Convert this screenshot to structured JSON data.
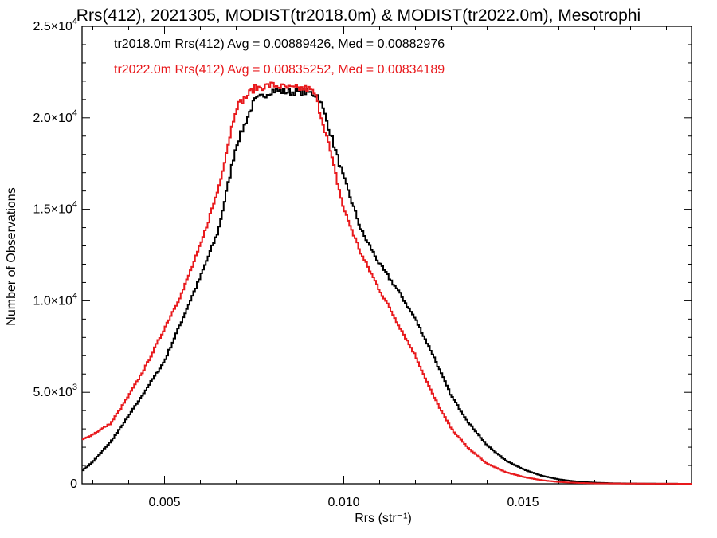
{
  "chart_data": {
    "type": "line",
    "style": "histogram-step",
    "title": "Rrs(412), 2021305, MODIST(tr2018.0m) & MODIST(tr2022.0m), Mesotrophi",
    "xlabel": "Rrs (str⁻¹)",
    "ylabel": "Number of Observations",
    "xlim": [
      0.0027,
      0.0197
    ],
    "ylim": [
      0,
      25000
    ],
    "grid": false,
    "legend_placement": "top-left",
    "x_ticks": [
      {
        "value": 0.005,
        "label": "0.005"
      },
      {
        "value": 0.01,
        "label": "0.010"
      },
      {
        "value": 0.015,
        "label": "0.015"
      }
    ],
    "y_ticks": [
      {
        "value": 0,
        "base": "0",
        "exp": ""
      },
      {
        "value": 5000,
        "base": "5.0×10",
        "exp": "3"
      },
      {
        "value": 10000,
        "base": "1.0×10",
        "exp": "4"
      },
      {
        "value": 15000,
        "base": "1.5×10",
        "exp": "4"
      },
      {
        "value": 20000,
        "base": "2.0×10",
        "exp": "4"
      },
      {
        "value": 25000,
        "base": "2.5×10",
        "exp": "4"
      }
    ],
    "series": [
      {
        "name": "tr2018.0m",
        "legend": "tr2018.0m Rrs(412) Avg = 0.00889426, Med = 0.00882976",
        "color": "#000000",
        "points": [
          [
            0.0027,
            700
          ],
          [
            0.003,
            1200
          ],
          [
            0.0035,
            2300
          ],
          [
            0.004,
            3700
          ],
          [
            0.0045,
            5200
          ],
          [
            0.005,
            6700
          ],
          [
            0.0055,
            9000
          ],
          [
            0.006,
            11300
          ],
          [
            0.0065,
            13800
          ],
          [
            0.007,
            18500
          ],
          [
            0.0075,
            20900
          ],
          [
            0.008,
            21500
          ],
          [
            0.0085,
            21400
          ],
          [
            0.009,
            21400
          ],
          [
            0.0093,
            21200
          ],
          [
            0.0095,
            20000
          ],
          [
            0.01,
            16700
          ],
          [
            0.0105,
            13800
          ],
          [
            0.011,
            12000
          ],
          [
            0.0115,
            10600
          ],
          [
            0.012,
            9000
          ],
          [
            0.0125,
            7000
          ],
          [
            0.013,
            4800
          ],
          [
            0.0135,
            3300
          ],
          [
            0.014,
            2100
          ],
          [
            0.0145,
            1300
          ],
          [
            0.015,
            800
          ],
          [
            0.0155,
            450
          ],
          [
            0.016,
            240
          ],
          [
            0.0165,
            120
          ],
          [
            0.017,
            60
          ],
          [
            0.0175,
            30
          ],
          [
            0.018,
            15
          ],
          [
            0.019,
            5
          ],
          [
            0.0197,
            0
          ]
        ]
      },
      {
        "name": "tr2022.0m",
        "legend": "tr2022.0m Rrs(412) Avg = 0.00835252, Med = 0.00834189",
        "color": "#e8191c",
        "points": [
          [
            0.0027,
            2400
          ],
          [
            0.003,
            2700
          ],
          [
            0.0035,
            3300
          ],
          [
            0.004,
            4800
          ],
          [
            0.0045,
            6500
          ],
          [
            0.005,
            8500
          ],
          [
            0.0055,
            10500
          ],
          [
            0.006,
            13000
          ],
          [
            0.0065,
            16100
          ],
          [
            0.007,
            20600
          ],
          [
            0.0075,
            21600
          ],
          [
            0.008,
            21800
          ],
          [
            0.0085,
            21600
          ],
          [
            0.009,
            21600
          ],
          [
            0.0092,
            21300
          ],
          [
            0.0095,
            19200
          ],
          [
            0.01,
            15000
          ],
          [
            0.0105,
            12500
          ],
          [
            0.011,
            10600
          ],
          [
            0.0115,
            8800
          ],
          [
            0.012,
            7000
          ],
          [
            0.0125,
            4800
          ],
          [
            0.013,
            3000
          ],
          [
            0.0135,
            1900
          ],
          [
            0.014,
            1100
          ],
          [
            0.0145,
            650
          ],
          [
            0.015,
            380
          ],
          [
            0.0155,
            200
          ],
          [
            0.016,
            100
          ],
          [
            0.0165,
            50
          ],
          [
            0.017,
            25
          ],
          [
            0.018,
            10
          ],
          [
            0.019,
            5
          ],
          [
            0.0197,
            0
          ]
        ]
      }
    ]
  }
}
